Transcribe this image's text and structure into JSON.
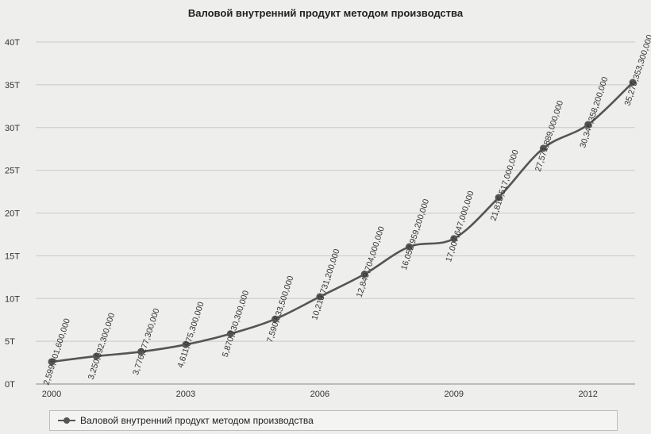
{
  "chart_data": {
    "type": "line",
    "title": "Валовой внутренний продукт методом производства",
    "xlabel": "",
    "ylabel": "",
    "x": [
      2000,
      2001,
      2002,
      2003,
      2004,
      2005,
      2006,
      2007,
      2008,
      2009,
      2010,
      2011,
      2012,
      2013
    ],
    "x_tick_labels": [
      "2000",
      "2003",
      "2006",
      "2009",
      "2012"
    ],
    "x_tick_values": [
      2000,
      2003,
      2006,
      2009,
      2012
    ],
    "y_tick_labels": [
      "0T",
      "5T",
      "10T",
      "15T",
      "20T",
      "25T",
      "30T",
      "35T",
      "40T"
    ],
    "y_tick_values": [
      0,
      5000000000000,
      10000000000000,
      15000000000000,
      20000000000000,
      25000000000000,
      30000000000000,
      35000000000000,
      40000000000000
    ],
    "xlim": [
      2000,
      2013
    ],
    "ylim": [
      0,
      40000000000000
    ],
    "grid": true,
    "legend_position": "bottom",
    "series": [
      {
        "name": "Валовой внутренний продукт методом производства",
        "color": "#555555",
        "values": [
          2599901600000,
          3250592300000,
          3776277300000,
          4611975300000,
          5870130300000,
          7590533500000,
          10213731200000,
          12849704000000,
          16052959200000,
          17007647000000,
          21815517000000,
          27571889000000,
          30346358200000,
          35275353300000
        ],
        "labels": [
          "2,599,901,600,000",
          "3,250,592,300,000",
          "3,776,277,300,000",
          "4,611,975,300,000",
          "5,870,130,300,000",
          "7,590,533,500,000",
          "10,213,731,200,000",
          "12,849,704,000,000",
          "16,052,959,200,000",
          "17,007,647,000,000",
          "21,815,517,000,000",
          "27,571,889,000,000",
          "30,346,358,200,000",
          "35,275,353,300,000"
        ]
      }
    ]
  }
}
